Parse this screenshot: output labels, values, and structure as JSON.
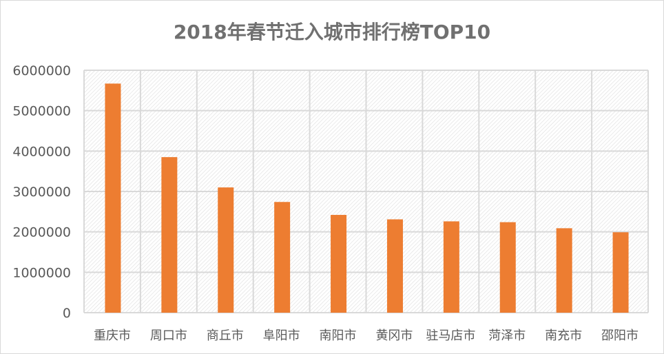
{
  "chart_data": {
    "type": "bar",
    "title": "2018年春节迁入城市排行榜TOP10",
    "categories": [
      "重庆市",
      "周口市",
      "商丘市",
      "阜阳市",
      "南阳市",
      "黄冈市",
      "驻马店市",
      "菏泽市",
      "南充市",
      "邵阳市"
    ],
    "values": [
      5670000,
      3850000,
      3100000,
      2740000,
      2420000,
      2310000,
      2260000,
      2240000,
      2090000,
      1990000
    ],
    "xlabel": "",
    "ylabel": "",
    "ylim": [
      0,
      6000000
    ],
    "yticks": [
      "0",
      "1000000",
      "2000000",
      "3000000",
      "4000000",
      "5000000",
      "6000000"
    ],
    "grid": true,
    "bar_color": "#ED7D31",
    "plot_background": "diagonal hatch light gray"
  }
}
